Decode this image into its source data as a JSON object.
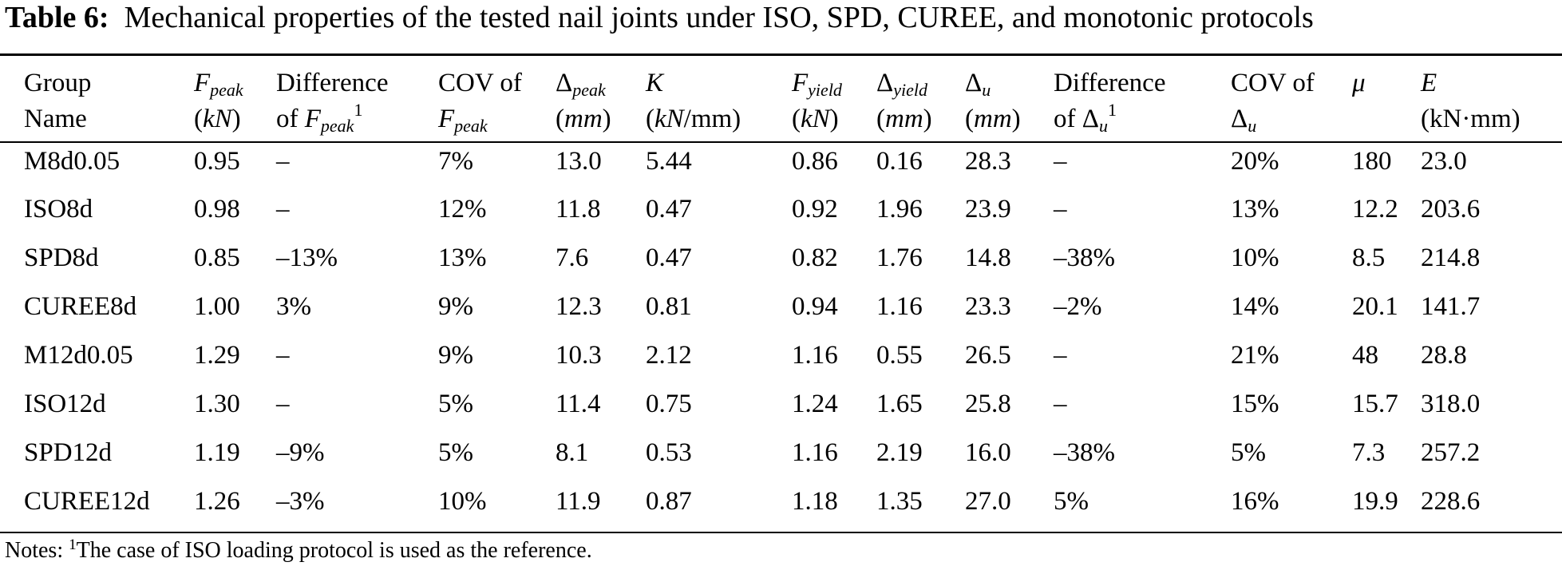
{
  "caption": {
    "label": "Table 6:",
    "text": "Mechanical properties of the tested nail joints under ISO, SPD, CUREE, and monotonic protocols"
  },
  "headers": {
    "group_l1": "Group",
    "group_l2": "Name",
    "fpeak_sym": "F",
    "fpeak_sub": "peak",
    "fpeak_unit": "kN",
    "diff_f_l1": "Difference",
    "diff_f_pre": "of ",
    "diff_f_sym": "F",
    "diff_f_sub": "peak",
    "diff_f_sup": "1",
    "cov_f_l1": "COV of",
    "cov_f_sym": "F",
    "cov_f_sub": "peak",
    "dpeak_sym": "Δ",
    "dpeak_sub": "peak",
    "dpeak_unit": "mm",
    "k_sym": "K",
    "k_unit_a": "kN",
    "k_unit_b": "/mm)",
    "fyield_sym": "F",
    "fyield_sub": "yield",
    "fyield_unit": "kN",
    "dyield_sym": "Δ",
    "dyield_sub": "yield",
    "dyield_unit": "mm",
    "du_sym": "Δ",
    "du_sub": "u",
    "du_unit": "mm",
    "diff_d_l1": "Difference",
    "diff_d_pre": "of Δ",
    "diff_d_sub": "u",
    "diff_d_sup": "1",
    "cov_d_l1": "COV of",
    "cov_d_sym": "Δ",
    "cov_d_sub": "u",
    "mu_sym": "μ",
    "e_sym": "E",
    "e_unit": "(kN·mm)"
  },
  "rows": [
    [
      "M8d0.05",
      "0.95",
      "–",
      "7%",
      "13.0",
      "5.44",
      "0.86",
      "0.16",
      "28.3",
      "–",
      "20%",
      "180",
      "23.0"
    ],
    [
      "ISO8d",
      "0.98",
      "–",
      "12%",
      "11.8",
      "0.47",
      "0.92",
      "1.96",
      "23.9",
      "–",
      "13%",
      "12.2",
      "203.6"
    ],
    [
      "SPD8d",
      "0.85",
      "–13%",
      "13%",
      "7.6",
      "0.47",
      "0.82",
      "1.76",
      "14.8",
      "–38%",
      "10%",
      "8.5",
      "214.8"
    ],
    [
      "CUREE8d",
      "1.00",
      "3%",
      "9%",
      "12.3",
      "0.81",
      "0.94",
      "1.16",
      "23.3",
      "–2%",
      "14%",
      "20.1",
      "141.7"
    ],
    [
      "M12d0.05",
      "1.29",
      "–",
      "9%",
      "10.3",
      "2.12",
      "1.16",
      "0.55",
      "26.5",
      "–",
      "21%",
      "48",
      "28.8"
    ],
    [
      "ISO12d",
      "1.30",
      "–",
      "5%",
      "11.4",
      "0.75",
      "1.24",
      "1.65",
      "25.8",
      "–",
      "15%",
      "15.7",
      "318.0"
    ],
    [
      "SPD12d",
      "1.19",
      "–9%",
      "5%",
      "8.1",
      "0.53",
      "1.16",
      "2.19",
      "16.0",
      "–38%",
      "5%",
      "7.3",
      "257.2"
    ],
    [
      "CUREE12d",
      "1.26",
      "–3%",
      "10%",
      "11.9",
      "0.87",
      "1.18",
      "1.35",
      "27.0",
      "5%",
      "16%",
      "19.9",
      "228.6"
    ]
  ],
  "notes": {
    "prefix": "Notes: ",
    "sup": "1",
    "text": "The case of ISO loading protocol is used as the reference."
  }
}
